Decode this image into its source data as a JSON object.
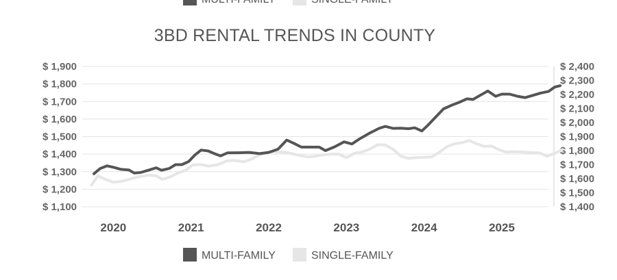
{
  "top_legend": {
    "items": [
      {
        "label": "MULTI-FAMILY",
        "color": "#555555"
      },
      {
        "label": "SINGLE-FAMILY",
        "color": "#e6e6e6"
      }
    ]
  },
  "chart_data": {
    "type": "line",
    "title": "3BD RENTAL TRENDS IN COUNTY",
    "xlabel": "",
    "ylabel_left": "",
    "ylabel_right": "",
    "x_ticks": [
      "2020",
      "2021",
      "2022",
      "2023",
      "2024",
      "2025"
    ],
    "x_range": [
      2019.6,
      2025.6
    ],
    "y_left": {
      "range": [
        1100,
        1900
      ],
      "ticks": [
        1100,
        1200,
        1300,
        1400,
        1500,
        1600,
        1700,
        1800,
        1900
      ],
      "tick_labels": [
        "$ 1,100",
        "$ 1,200",
        "$ 1,300",
        "$ 1,400",
        "$ 1,500",
        "$ 1,600",
        "$ 1,700",
        "$ 1,800",
        "$ 1,900"
      ]
    },
    "y_right": {
      "range": [
        1400,
        2400
      ],
      "ticks": [
        1400,
        1500,
        1600,
        1700,
        1800,
        1900,
        2000,
        2100,
        2200,
        2300,
        2400
      ],
      "tick_labels": [
        "$ 1,400",
        "$ 1,500",
        "$ 1,600",
        "$ 1,700",
        "$ 1,800",
        "$ 1,900",
        "$ 2,000",
        "$ 2,100",
        "$ 2,200",
        "$ 2,300",
        "$ 2,400"
      ]
    },
    "grid": true,
    "legend_position": "bottom",
    "series": [
      {
        "name": "MULTI-FAMILY",
        "axis": "left",
        "color": "#555555",
        "points": [
          [
            2019.75,
            1288
          ],
          [
            2019.83,
            1318
          ],
          [
            2019.92,
            1333
          ],
          [
            2020.0,
            1325
          ],
          [
            2020.1,
            1313
          ],
          [
            2020.2,
            1310
          ],
          [
            2020.27,
            1292
          ],
          [
            2020.35,
            1295
          ],
          [
            2020.45,
            1308
          ],
          [
            2020.55,
            1322
          ],
          [
            2020.62,
            1308
          ],
          [
            2020.72,
            1318
          ],
          [
            2020.8,
            1340
          ],
          [
            2020.88,
            1340
          ],
          [
            2020.97,
            1358
          ],
          [
            2021.05,
            1395
          ],
          [
            2021.13,
            1423
          ],
          [
            2021.22,
            1418
          ],
          [
            2021.3,
            1403
          ],
          [
            2021.38,
            1390
          ],
          [
            2021.47,
            1407
          ],
          [
            2021.6,
            1408
          ],
          [
            2021.75,
            1410
          ],
          [
            2021.88,
            1403
          ],
          [
            2022.0,
            1410
          ],
          [
            2022.12,
            1428
          ],
          [
            2022.23,
            1480
          ],
          [
            2022.32,
            1462
          ],
          [
            2022.42,
            1440
          ],
          [
            2022.55,
            1440
          ],
          [
            2022.65,
            1440
          ],
          [
            2022.73,
            1420
          ],
          [
            2022.85,
            1442
          ],
          [
            2022.97,
            1470
          ],
          [
            2023.07,
            1458
          ],
          [
            2023.17,
            1487
          ],
          [
            2023.3,
            1520
          ],
          [
            2023.42,
            1547
          ],
          [
            2023.5,
            1558
          ],
          [
            2023.6,
            1547
          ],
          [
            2023.7,
            1548
          ],
          [
            2023.8,
            1545
          ],
          [
            2023.88,
            1550
          ],
          [
            2023.97,
            1532
          ],
          [
            2024.05,
            1565
          ],
          [
            2024.15,
            1612
          ],
          [
            2024.25,
            1658
          ],
          [
            2024.35,
            1678
          ],
          [
            2024.45,
            1695
          ],
          [
            2024.55,
            1715
          ],
          [
            2024.63,
            1712
          ],
          [
            2024.72,
            1735
          ],
          [
            2024.82,
            1760
          ],
          [
            2024.92,
            1730
          ],
          [
            2025.0,
            1742
          ],
          [
            2025.1,
            1742
          ],
          [
            2025.2,
            1730
          ],
          [
            2025.3,
            1722
          ],
          [
            2025.4,
            1735
          ],
          [
            2025.5,
            1748
          ],
          [
            2025.6,
            1757
          ],
          [
            2025.68,
            1782
          ],
          [
            2025.75,
            1790
          ]
        ]
      },
      {
        "name": "SINGLE-FAMILY",
        "axis": "right",
        "color": "#e6e6e6",
        "points": [
          [
            2019.72,
            1555
          ],
          [
            2019.8,
            1620
          ],
          [
            2019.9,
            1595
          ],
          [
            2020.0,
            1575
          ],
          [
            2020.1,
            1580
          ],
          [
            2020.2,
            1595
          ],
          [
            2020.3,
            1610
          ],
          [
            2020.45,
            1625
          ],
          [
            2020.55,
            1620
          ],
          [
            2020.63,
            1595
          ],
          [
            2020.72,
            1610
          ],
          [
            2020.83,
            1640
          ],
          [
            2020.93,
            1660
          ],
          [
            2021.03,
            1700
          ],
          [
            2021.13,
            1700
          ],
          [
            2021.23,
            1690
          ],
          [
            2021.35,
            1700
          ],
          [
            2021.45,
            1725
          ],
          [
            2021.55,
            1730
          ],
          [
            2021.68,
            1720
          ],
          [
            2021.78,
            1740
          ],
          [
            2021.88,
            1770
          ],
          [
            2022.0,
            1790
          ],
          [
            2022.1,
            1790
          ],
          [
            2022.2,
            1790
          ],
          [
            2022.3,
            1778
          ],
          [
            2022.4,
            1765
          ],
          [
            2022.5,
            1755
          ],
          [
            2022.6,
            1760
          ],
          [
            2022.7,
            1770
          ],
          [
            2022.8,
            1775
          ],
          [
            2022.9,
            1775
          ],
          [
            2023.0,
            1750
          ],
          [
            2023.1,
            1780
          ],
          [
            2023.2,
            1790
          ],
          [
            2023.3,
            1810
          ],
          [
            2023.4,
            1842
          ],
          [
            2023.5,
            1840
          ],
          [
            2023.6,
            1810
          ],
          [
            2023.7,
            1760
          ],
          [
            2023.8,
            1745
          ],
          [
            2023.9,
            1750
          ],
          [
            2024.0,
            1752
          ],
          [
            2024.1,
            1755
          ],
          [
            2024.2,
            1790
          ],
          [
            2024.3,
            1830
          ],
          [
            2024.4,
            1850
          ],
          [
            2024.5,
            1858
          ],
          [
            2024.58,
            1872
          ],
          [
            2024.67,
            1850
          ],
          [
            2024.77,
            1830
          ],
          [
            2024.87,
            1832
          ],
          [
            2024.95,
            1810
          ],
          [
            2025.05,
            1790
          ],
          [
            2025.15,
            1792
          ],
          [
            2025.28,
            1790
          ],
          [
            2025.38,
            1785
          ],
          [
            2025.48,
            1785
          ],
          [
            2025.58,
            1760
          ],
          [
            2025.7,
            1785
          ],
          [
            2025.78,
            1808
          ]
        ]
      }
    ]
  }
}
